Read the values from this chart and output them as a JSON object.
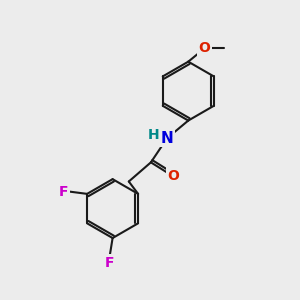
{
  "bg_color": "#ececec",
  "bond_color": "#1a1a1a",
  "bond_width": 1.5,
  "atom_colors": {
    "N": "#0000dd",
    "O_carbonyl": "#dd2200",
    "O_methoxy": "#dd2200",
    "F": "#cc00cc",
    "H": "#008888"
  }
}
